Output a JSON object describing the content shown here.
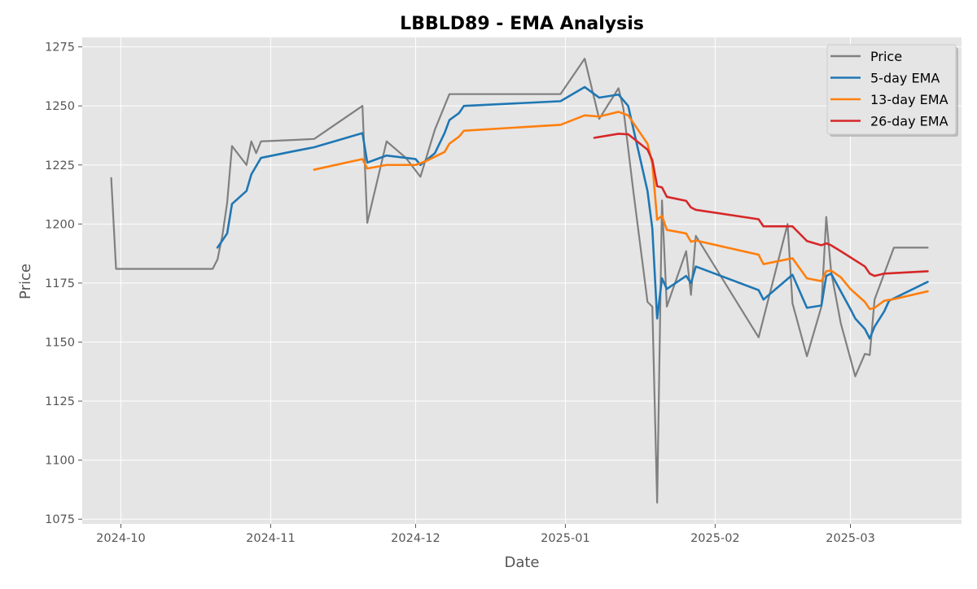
{
  "chart_data": {
    "type": "line",
    "title": "LBBLD89 - EMA Analysis",
    "xlabel": "Date",
    "ylabel": "Price",
    "x_axis_type": "date",
    "xlim": [
      "2024-09-23",
      "2025-03-24"
    ],
    "ylim": [
      1073,
      1279
    ],
    "xticks": [
      {
        "date": "2024-10-01",
        "label": "2024-10"
      },
      {
        "date": "2024-11-01",
        "label": "2024-11"
      },
      {
        "date": "2024-12-01",
        "label": "2024-12"
      },
      {
        "date": "2025-01-01",
        "label": "2025-01"
      },
      {
        "date": "2025-02-01",
        "label": "2025-02"
      },
      {
        "date": "2025-03-01",
        "label": "2025-03"
      }
    ],
    "yticks": [
      1075,
      1100,
      1125,
      1150,
      1175,
      1200,
      1225,
      1250,
      1275
    ],
    "grid": true,
    "legend_position": "top-right",
    "series": [
      {
        "name": "Price",
        "color": "#808080",
        "points": [
          [
            "2024-09-29",
            1219.5
          ],
          [
            "2024-09-30",
            1181
          ],
          [
            "2024-10-20",
            1181
          ],
          [
            "2024-10-21",
            1185
          ],
          [
            "2024-10-22",
            1195
          ],
          [
            "2024-10-23",
            1209
          ],
          [
            "2024-10-24",
            1233
          ],
          [
            "2024-10-27",
            1225
          ],
          [
            "2024-10-28",
            1235
          ],
          [
            "2024-10-29",
            1230
          ],
          [
            "2024-10-30",
            1235
          ],
          [
            "2024-11-05",
            1235.5
          ],
          [
            "2024-11-10",
            1236
          ],
          [
            "2024-11-20",
            1250
          ],
          [
            "2024-11-21",
            1200.5
          ],
          [
            "2024-11-25",
            1235
          ],
          [
            "2024-11-29",
            1228
          ],
          [
            "2024-12-02",
            1220
          ],
          [
            "2024-12-05",
            1240
          ],
          [
            "2024-12-08",
            1255
          ],
          [
            "2024-12-31",
            1255
          ],
          [
            "2025-01-05",
            1270
          ],
          [
            "2025-01-08",
            1244.5
          ],
          [
            "2025-01-12",
            1257.5
          ],
          [
            "2025-01-13",
            1249
          ],
          [
            "2025-01-15",
            1215
          ],
          [
            "2025-01-18",
            1167
          ],
          [
            "2025-01-19",
            1165
          ],
          [
            "2025-01-20",
            1082
          ],
          [
            "2025-01-21",
            1210
          ],
          [
            "2025-01-22",
            1165
          ],
          [
            "2025-01-26",
            1188.5
          ],
          [
            "2025-01-27",
            1170
          ],
          [
            "2025-01-28",
            1195
          ],
          [
            "2025-02-10",
            1152
          ],
          [
            "2025-02-16",
            1200
          ],
          [
            "2025-02-17",
            1166.5
          ],
          [
            "2025-02-20",
            1144
          ],
          [
            "2025-02-23",
            1165
          ],
          [
            "2025-02-24",
            1203
          ],
          [
            "2025-02-25",
            1180
          ],
          [
            "2025-02-27",
            1158
          ],
          [
            "2025-03-02",
            1135.5
          ],
          [
            "2025-03-04",
            1145
          ],
          [
            "2025-03-05",
            1144.5
          ],
          [
            "2025-03-06",
            1168
          ],
          [
            "2025-03-08",
            1179
          ],
          [
            "2025-03-10",
            1190
          ],
          [
            "2025-03-17",
            1190
          ]
        ]
      },
      {
        "name": "5-day EMA",
        "color": "#1f77b4",
        "points": [
          [
            "2024-10-21",
            1190
          ],
          [
            "2024-10-23",
            1196
          ],
          [
            "2024-10-24",
            1208.5
          ],
          [
            "2024-10-27",
            1214
          ],
          [
            "2024-10-28",
            1221
          ],
          [
            "2024-10-30",
            1228
          ],
          [
            "2024-11-05",
            1230.5
          ],
          [
            "2024-11-10",
            1232.5
          ],
          [
            "2024-11-20",
            1238.5
          ],
          [
            "2024-11-21",
            1226
          ],
          [
            "2024-11-25",
            1229
          ],
          [
            "2024-11-29",
            1228
          ],
          [
            "2024-12-01",
            1227.5
          ],
          [
            "2024-12-02",
            1225
          ],
          [
            "2024-12-05",
            1230
          ],
          [
            "2024-12-07",
            1238.5
          ],
          [
            "2024-12-08",
            1244
          ],
          [
            "2024-12-10",
            1247
          ],
          [
            "2024-12-11",
            1250
          ],
          [
            "2024-12-31",
            1252
          ],
          [
            "2025-01-05",
            1258
          ],
          [
            "2025-01-08",
            1253.5
          ],
          [
            "2025-01-12",
            1254.8
          ],
          [
            "2025-01-14",
            1250
          ],
          [
            "2025-01-18",
            1214
          ],
          [
            "2025-01-19",
            1198
          ],
          [
            "2025-01-20",
            1160
          ],
          [
            "2025-01-21",
            1177
          ],
          [
            "2025-01-22",
            1172.5
          ],
          [
            "2025-01-26",
            1178
          ],
          [
            "2025-01-27",
            1175
          ],
          [
            "2025-01-28",
            1182
          ],
          [
            "2025-02-10",
            1172
          ],
          [
            "2025-02-11",
            1168
          ],
          [
            "2025-02-17",
            1178.5
          ],
          [
            "2025-02-20",
            1164.5
          ],
          [
            "2025-02-23",
            1165.5
          ],
          [
            "2025-02-24",
            1178
          ],
          [
            "2025-02-25",
            1179
          ],
          [
            "2025-03-01",
            1164
          ],
          [
            "2025-03-02",
            1160
          ],
          [
            "2025-03-04",
            1155.5
          ],
          [
            "2025-03-05",
            1151.5
          ],
          [
            "2025-03-06",
            1156.5
          ],
          [
            "2025-03-08",
            1163
          ],
          [
            "2025-03-09",
            1167.5
          ],
          [
            "2025-03-17",
            1175.5
          ]
        ]
      },
      {
        "name": "13-day EMA",
        "color": "#ff7f0e",
        "points": [
          [
            "2024-11-10",
            1223
          ],
          [
            "2024-11-20",
            1227.5
          ],
          [
            "2024-11-21",
            1223.5
          ],
          [
            "2024-11-25",
            1225
          ],
          [
            "2024-12-01",
            1225
          ],
          [
            "2024-12-03",
            1226.5
          ],
          [
            "2024-12-07",
            1230.5
          ],
          [
            "2024-12-08",
            1234
          ],
          [
            "2024-12-10",
            1237
          ],
          [
            "2024-12-11",
            1239.5
          ],
          [
            "2024-12-31",
            1242
          ],
          [
            "2025-01-05",
            1246
          ],
          [
            "2025-01-08",
            1245.5
          ],
          [
            "2025-01-12",
            1247.5
          ],
          [
            "2025-01-14",
            1246
          ],
          [
            "2025-01-18",
            1234
          ],
          [
            "2025-01-19",
            1225.5
          ],
          [
            "2025-01-20",
            1201.8
          ],
          [
            "2025-01-21",
            1203.5
          ],
          [
            "2025-01-22",
            1197.5
          ],
          [
            "2025-01-26",
            1196
          ],
          [
            "2025-01-27",
            1192.5
          ],
          [
            "2025-01-28",
            1193
          ],
          [
            "2025-02-10",
            1187
          ],
          [
            "2025-02-11",
            1183
          ],
          [
            "2025-02-17",
            1185.5
          ],
          [
            "2025-02-20",
            1177
          ],
          [
            "2025-02-23",
            1175.8
          ],
          [
            "2025-02-24",
            1180
          ],
          [
            "2025-02-25",
            1180.3
          ],
          [
            "2025-02-27",
            1177.5
          ],
          [
            "2025-03-01",
            1172.5
          ],
          [
            "2025-03-04",
            1167
          ],
          [
            "2025-03-05",
            1164
          ],
          [
            "2025-03-06",
            1164.5
          ],
          [
            "2025-03-08",
            1167.5
          ],
          [
            "2025-03-10",
            1168.2
          ],
          [
            "2025-03-17",
            1171.5
          ]
        ]
      },
      {
        "name": "26-day EMA",
        "color": "#d62728",
        "points": [
          [
            "2025-01-07",
            1236.5
          ],
          [
            "2025-01-12",
            1238.2
          ],
          [
            "2025-01-14",
            1238
          ],
          [
            "2025-01-18",
            1231.5
          ],
          [
            "2025-01-19",
            1227
          ],
          [
            "2025-01-20",
            1216
          ],
          [
            "2025-01-21",
            1215.5
          ],
          [
            "2025-01-22",
            1211.5
          ],
          [
            "2025-01-26",
            1209.8
          ],
          [
            "2025-01-27",
            1207
          ],
          [
            "2025-01-28",
            1206
          ],
          [
            "2025-02-10",
            1202
          ],
          [
            "2025-02-11",
            1199
          ],
          [
            "2025-02-17",
            1199
          ],
          [
            "2025-02-20",
            1192.8
          ],
          [
            "2025-02-23",
            1191
          ],
          [
            "2025-02-24",
            1191.8
          ],
          [
            "2025-02-25",
            1191
          ],
          [
            "2025-02-27",
            1188.5
          ],
          [
            "2025-03-04",
            1182
          ],
          [
            "2025-03-05",
            1179
          ],
          [
            "2025-03-06",
            1178
          ],
          [
            "2025-03-07",
            1178.5
          ],
          [
            "2025-03-08",
            1179
          ],
          [
            "2025-03-17",
            1180
          ]
        ]
      }
    ]
  }
}
